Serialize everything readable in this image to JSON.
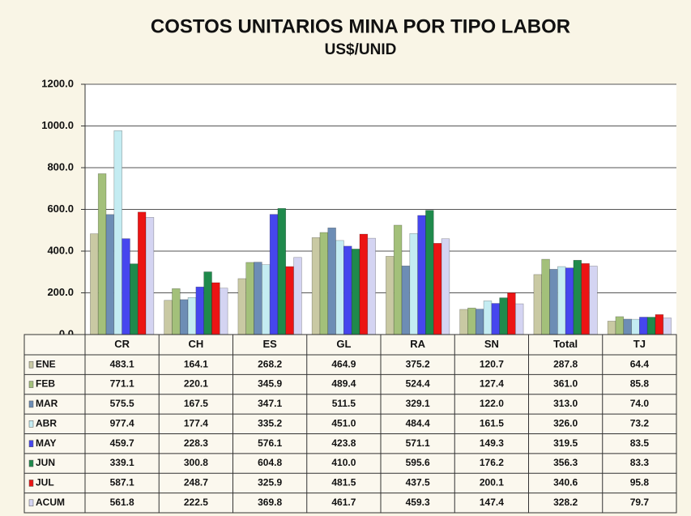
{
  "chart_data": {
    "type": "bar",
    "title": "COSTOS UNITARIOS MINA POR TIPO LABOR",
    "subtitle": "US$/UNID",
    "categories": [
      "CR",
      "CH",
      "ES",
      "GL",
      "RA",
      "SN",
      "Total",
      "TJ"
    ],
    "ylim": [
      0,
      1200
    ],
    "yticks": [
      {
        "value": 0,
        "label": "0.0"
      },
      {
        "value": 200,
        "label": "200.0"
      },
      {
        "value": 400,
        "label": "400.0"
      },
      {
        "value": 600,
        "label": "600.0"
      },
      {
        "value": 800,
        "label": "800.0"
      },
      {
        "value": 1000,
        "label": "1000.0"
      },
      {
        "value": 1200,
        "label": "1200.0"
      }
    ],
    "grid": true,
    "series": [
      {
        "name": "ENE",
        "color": "#c9c9a3",
        "values": [
          483.1,
          164.1,
          268.2,
          464.9,
          375.2,
          120.7,
          287.8,
          64.4
        ],
        "value_labels": [
          "483.1",
          "164.1",
          "268.2",
          "464.9",
          "375.2",
          "120.7",
          "287.8",
          "64.4"
        ]
      },
      {
        "name": "FEB",
        "color": "#a3c07a",
        "values": [
          771.1,
          220.1,
          345.9,
          489.4,
          524.4,
          127.4,
          361.0,
          85.8
        ],
        "value_labels": [
          "771.1",
          "220.1",
          "345.9",
          "489.4",
          "524.4",
          "127.4",
          "361.0",
          "85.8"
        ]
      },
      {
        "name": "MAR",
        "color": "#6d8db5",
        "values": [
          575.5,
          167.5,
          347.1,
          511.5,
          329.1,
          122.0,
          313.0,
          74.0
        ],
        "value_labels": [
          "575.5",
          "167.5",
          "347.1",
          "511.5",
          "329.1",
          "122.0",
          "313.0",
          "74.0"
        ]
      },
      {
        "name": "ABR",
        "color": "#c4ecf2",
        "values": [
          977.4,
          177.4,
          335.2,
          451.0,
          484.4,
          161.5,
          326.0,
          73.2
        ],
        "value_labels": [
          "977.4",
          "177.4",
          "335.2",
          "451.0",
          "484.4",
          "161.5",
          "326.0",
          "73.2"
        ]
      },
      {
        "name": "MAY",
        "color": "#4646ee",
        "values": [
          459.7,
          228.3,
          576.1,
          423.8,
          571.1,
          149.3,
          319.5,
          83.5
        ],
        "value_labels": [
          "459.7",
          "228.3",
          "576.1",
          "423.8",
          "571.1",
          "149.3",
          "319.5",
          "83.5"
        ]
      },
      {
        "name": "JUN",
        "color": "#1f8a4c",
        "values": [
          339.1,
          300.8,
          604.8,
          410.0,
          595.6,
          176.2,
          356.3,
          83.3
        ],
        "value_labels": [
          "339.1",
          "300.8",
          "604.8",
          "410.0",
          "595.6",
          "176.2",
          "356.3",
          "83.3"
        ]
      },
      {
        "name": "JUL",
        "color": "#ec1414",
        "values": [
          587.1,
          248.7,
          325.9,
          481.5,
          437.5,
          200.1,
          340.6,
          95.8
        ],
        "value_labels": [
          "587.1",
          "248.7",
          "325.9",
          "481.5",
          "437.5",
          "200.1",
          "340.6",
          "95.8"
        ]
      },
      {
        "name": "ACUM",
        "color": "#d4d4f2",
        "values": [
          561.8,
          222.5,
          369.8,
          461.7,
          459.3,
          147.4,
          328.2,
          79.7
        ],
        "value_labels": [
          "561.8",
          "222.5",
          "369.8",
          "461.7",
          "459.3",
          "147.4",
          "328.2",
          "79.7"
        ]
      }
    ]
  }
}
